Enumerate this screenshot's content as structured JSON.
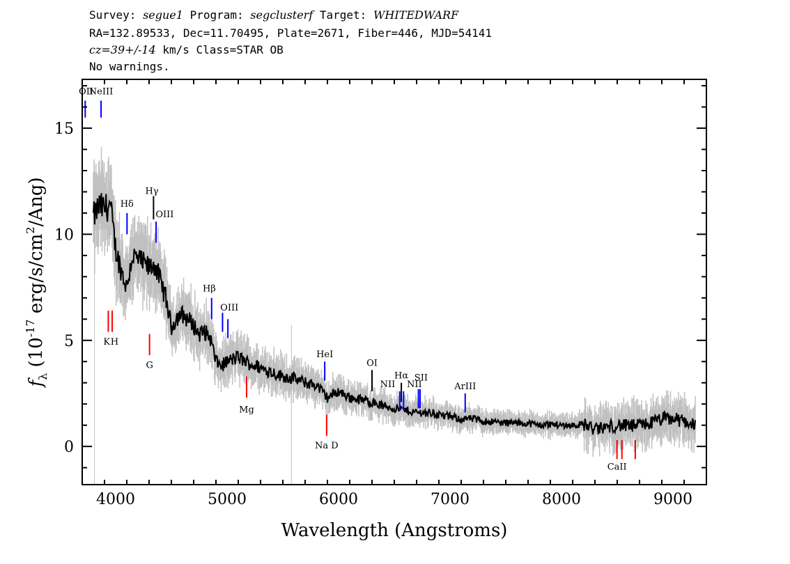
{
  "header": {
    "line1": {
      "survey_label": "Survey: ",
      "survey": "segue1",
      "program_label": " Program: ",
      "program": "segclusterf",
      "target_label": " Target: ",
      "target": "WHITEDWARF"
    },
    "line2": "RA=132.89533, Dec=11.70495, Plate=2671, Fiber=446, MJD=54141",
    "line3": {
      "cz": "cz=39+/-14",
      "rest": " km/s Class=STAR OB"
    },
    "line4": "No warnings."
  },
  "chart_data": {
    "type": "line",
    "xlabel": "Wavelength (Angstroms)",
    "ylabel": "f_λ (10^-17 erg/s/cm^2/Ang)",
    "ylabel_parts": {
      "f": "f",
      "sub": "λ",
      "a": " (10",
      "exp1": "-17",
      "b": " erg/s/cm",
      "exp2": "2",
      "c": "/Ang)"
    },
    "xlim": [
      3700,
      9300
    ],
    "ylim": [
      -1.8,
      17.3
    ],
    "xticks": [
      4000,
      5000,
      6000,
      7000,
      8000,
      9000
    ],
    "yticks": [
      0,
      5,
      10,
      15
    ],
    "colors": {
      "flux": "#000000",
      "error": "#c0c0c0",
      "emission": "#0000ff",
      "absorption": "#ff0000",
      "sky": "#000000"
    },
    "series": [
      {
        "values_note": "",
        "x": [
          3800,
          3850,
          3900,
          3950,
          4000,
          4050,
          4100,
          4150,
          4200,
          4250,
          4300,
          4350,
          4400,
          4450,
          4500,
          4550,
          4600,
          4650,
          4700,
          4750,
          4800,
          4850,
          4900,
          4950,
          5000,
          5100,
          5200,
          5300,
          5400,
          5500,
          5600,
          5700,
          5800,
          5900,
          6000,
          6100,
          6200,
          6300,
          6400,
          6500,
          6600,
          6700,
          6800,
          6900,
          7000,
          7100,
          7200,
          7300,
          7400,
          7500,
          7600,
          7700,
          7800,
          7900,
          8000,
          8100,
          8200,
          8300,
          8400,
          8500,
          8600,
          8700,
          8800,
          8900,
          9000,
          9100,
          9200
        ],
        "y": [
          10.8,
          11.3,
          11.2,
          11.4,
          9.3,
          8.3,
          7.5,
          9.0,
          8.8,
          8.6,
          8.4,
          8.6,
          7.8,
          7.0,
          5.6,
          6.1,
          6.2,
          6.0,
          5.7,
          5.3,
          5.4,
          5.1,
          4.0,
          3.8,
          4.0,
          4.2,
          3.9,
          3.7,
          3.5,
          3.3,
          3.2,
          3.0,
          2.9,
          2.3,
          2.6,
          2.3,
          2.2,
          2.1,
          1.9,
          1.8,
          1.7,
          1.6,
          1.6,
          1.5,
          1.4,
          1.3,
          1.3,
          1.2,
          1.15,
          1.1,
          1.1,
          1.1,
          1.0,
          1.05,
          1.0,
          1.0,
          1.05,
          0.8,
          0.9,
          1.0,
          0.95,
          1.0,
          1.1,
          1.3,
          1.3,
          1.2,
          1.0
        ]
      }
    ],
    "lines": [
      {
        "label": "OII",
        "x": 3727,
        "color": "blue",
        "y0": 15.5,
        "y1": 16.3,
        "lx": 3735,
        "ly": 16.6
      },
      {
        "label": "NeIII",
        "x": 3869,
        "color": "blue",
        "y0": 15.5,
        "y1": 16.3,
        "lx": 3869,
        "ly": 16.6
      },
      {
        "label": "Hδ",
        "x": 4102,
        "color": "blue",
        "y0": 10.0,
        "y1": 11.0,
        "lx": 4102,
        "ly": 11.3
      },
      {
        "label": "Hγ",
        "x": 4340,
        "color": "black",
        "y0": 10.7,
        "y1": 11.8,
        "lx": 4325,
        "ly": 11.9
      },
      {
        "label": "OIII",
        "x": 4363,
        "color": "blue",
        "y0": 9.6,
        "y1": 10.6,
        "lx": 4440,
        "ly": 10.8
      },
      {
        "label": "Hβ",
        "x": 4861,
        "color": "blue",
        "y0": 6.0,
        "y1": 7.0,
        "lx": 4840,
        "ly": 7.3
      },
      {
        "label": "OIII",
        "x": 4959,
        "color": "blue",
        "y0": 5.4,
        "y1": 6.3,
        "lx": 5020,
        "ly": 6.4
      },
      {
        "label": "",
        "x": 5007,
        "color": "blue",
        "y0": 5.1,
        "y1": 6.0,
        "lx": 5007,
        "ly": 6.0
      },
      {
        "label": "HeI",
        "x": 5876,
        "color": "blue",
        "y0": 3.1,
        "y1": 4.0,
        "lx": 5876,
        "ly": 4.2
      },
      {
        "label": "OI",
        "x": 6300,
        "color": "black",
        "y0": 2.6,
        "y1": 3.6,
        "lx": 6300,
        "ly": 3.8
      },
      {
        "label": "NII",
        "x": 6548,
        "color": "blue",
        "y0": 1.7,
        "y1": 2.6,
        "lx": 6440,
        "ly": 2.8
      },
      {
        "label": "Hα",
        "x": 6563,
        "color": "black",
        "y0": 2.1,
        "y1": 3.0,
        "lx": 6563,
        "ly": 3.2
      },
      {
        "label": "",
        "x": 6583,
        "color": "blue",
        "y0": 1.7,
        "y1": 2.6,
        "lx": 6583,
        "ly": 2.6
      },
      {
        "label": "NII",
        "x": 6716,
        "color": "blue",
        "y0": 1.8,
        "y1": 2.7,
        "lx": 6680,
        "ly": 2.8
      },
      {
        "label": "SII",
        "x": 6731,
        "color": "blue",
        "y0": 1.8,
        "y1": 2.7,
        "lx": 6740,
        "ly": 3.1
      },
      {
        "label": "ArIII",
        "x": 7136,
        "color": "blue",
        "y0": 1.6,
        "y1": 2.5,
        "lx": 7136,
        "ly": 2.7
      },
      {
        "label": "K",
        "x": 3934,
        "color": "red",
        "y0": 5.4,
        "y1": 6.4,
        "lx": 3920,
        "ly": 4.8
      },
      {
        "label": "H",
        "x": 3969,
        "color": "red",
        "y0": 5.4,
        "y1": 6.4,
        "lx": 3990,
        "ly": 4.8
      },
      {
        "label": "G",
        "x": 4304,
        "color": "red",
        "y0": 4.3,
        "y1": 5.3,
        "lx": 4304,
        "ly": 3.7
      },
      {
        "label": "Mg",
        "x": 5175,
        "color": "red",
        "y0": 2.3,
        "y1": 3.3,
        "lx": 5175,
        "ly": 1.6
      },
      {
        "label": "Na D",
        "x": 5893,
        "color": "red",
        "y0": 0.5,
        "y1": 1.5,
        "lx": 5893,
        "ly": -0.1
      },
      {
        "label": "CaII",
        "x": 8498,
        "color": "red",
        "y0": -0.6,
        "y1": 0.3,
        "lx": 8498,
        "ly": -1.1
      },
      {
        "label": "",
        "x": 8542,
        "color": "red",
        "y0": -0.6,
        "y1": 0.3,
        "lx": 8542,
        "ly": -1.1
      },
      {
        "label": "",
        "x": 8662,
        "color": "red",
        "y0": -0.6,
        "y1": 0.3,
        "lx": 8662,
        "ly": -1.1
      }
    ]
  }
}
